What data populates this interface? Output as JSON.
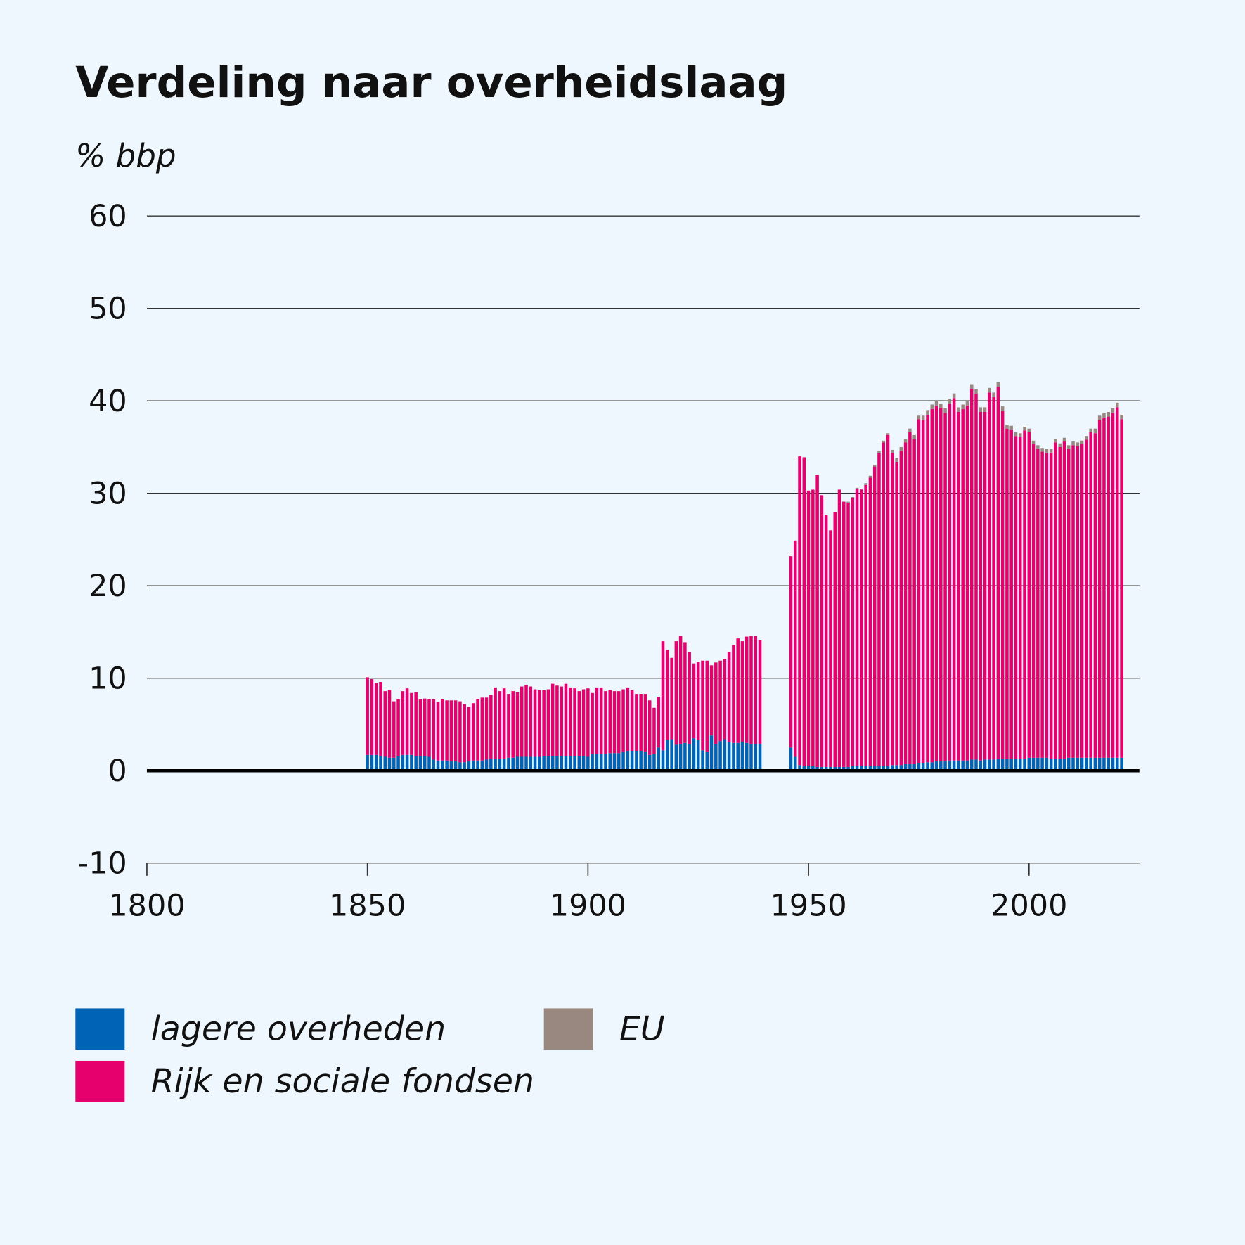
{
  "chart_data": {
    "type": "stacked-bar",
    "title": "Verdeling naar overheidslaag",
    "y_label": "% bbp",
    "x": [
      1850,
      1851,
      1852,
      1853,
      1854,
      1855,
      1856,
      1857,
      1858,
      1859,
      1860,
      1861,
      1862,
      1863,
      1864,
      1865,
      1866,
      1867,
      1868,
      1869,
      1870,
      1871,
      1872,
      1873,
      1874,
      1875,
      1876,
      1877,
      1878,
      1879,
      1880,
      1881,
      1882,
      1883,
      1884,
      1885,
      1886,
      1887,
      1888,
      1889,
      1890,
      1891,
      1892,
      1893,
      1894,
      1895,
      1896,
      1897,
      1898,
      1899,
      1900,
      1901,
      1902,
      1903,
      1904,
      1905,
      1906,
      1907,
      1908,
      1909,
      1910,
      1911,
      1912,
      1913,
      1914,
      1915,
      1916,
      1917,
      1918,
      1919,
      1920,
      1921,
      1922,
      1923,
      1924,
      1925,
      1926,
      1927,
      1928,
      1929,
      1930,
      1931,
      1932,
      1933,
      1934,
      1935,
      1936,
      1937,
      1938,
      1939,
      1946,
      1947,
      1948,
      1949,
      1950,
      1951,
      1952,
      1953,
      1954,
      1955,
      1956,
      1957,
      1958,
      1959,
      1960,
      1961,
      1962,
      1963,
      1964,
      1965,
      1966,
      1967,
      1968,
      1969,
      1970,
      1971,
      1972,
      1973,
      1974,
      1975,
      1976,
      1977,
      1978,
      1979,
      1980,
      1981,
      1982,
      1983,
      1984,
      1985,
      1986,
      1987,
      1988,
      1989,
      1990,
      1991,
      1992,
      1993,
      1994,
      1995,
      1996,
      1997,
      1998,
      1999,
      2000,
      2001,
      2002,
      2003,
      2004,
      2005,
      2006,
      2007,
      2008,
      2009,
      2010,
      2011,
      2012,
      2013,
      2014,
      2015,
      2016,
      2017,
      2018,
      2019,
      2020,
      2021
    ],
    "series": [
      {
        "name": "lagere overheden",
        "color": "#0063b6",
        "values": [
          1.7,
          1.7,
          1.7,
          1.6,
          1.5,
          1.4,
          1.4,
          1.6,
          1.7,
          1.7,
          1.7,
          1.6,
          1.6,
          1.6,
          1.5,
          1.2,
          1.1,
          1.1,
          1.1,
          1.0,
          1.0,
          0.9,
          0.9,
          1.0,
          1.1,
          1.1,
          1.1,
          1.2,
          1.3,
          1.3,
          1.3,
          1.3,
          1.4,
          1.4,
          1.5,
          1.5,
          1.5,
          1.5,
          1.5,
          1.5,
          1.6,
          1.6,
          1.6,
          1.6,
          1.6,
          1.6,
          1.6,
          1.6,
          1.6,
          1.6,
          1.5,
          1.8,
          1.8,
          1.8,
          1.8,
          1.9,
          1.9,
          1.9,
          2.0,
          2.1,
          2.1,
          2.1,
          2.1,
          2.0,
          1.7,
          1.8,
          2.5,
          2.2,
          3.3,
          3.4,
          2.8,
          2.9,
          3.0,
          2.9,
          3.5,
          3.3,
          2.2,
          2.0,
          3.8,
          2.9,
          3.2,
          3.4,
          3.1,
          3.0,
          3.0,
          3.1,
          3.0,
          2.9,
          2.9,
          2.9,
          2.5,
          1.5,
          0.6,
          0.5,
          0.5,
          0.5,
          0.4,
          0.4,
          0.4,
          0.4,
          0.4,
          0.4,
          0.4,
          0.4,
          0.5,
          0.5,
          0.5,
          0.5,
          0.5,
          0.5,
          0.5,
          0.5,
          0.5,
          0.6,
          0.6,
          0.6,
          0.7,
          0.7,
          0.7,
          0.8,
          0.8,
          0.9,
          0.9,
          1.0,
          1.0,
          1.0,
          1.1,
          1.1,
          1.1,
          1.1,
          1.1,
          1.2,
          1.2,
          1.1,
          1.2,
          1.2,
          1.2,
          1.3,
          1.3,
          1.3,
          1.3,
          1.3,
          1.3,
          1.3,
          1.4,
          1.4,
          1.4,
          1.4,
          1.4,
          1.3,
          1.3,
          1.3,
          1.3,
          1.4,
          1.4,
          1.4,
          1.4,
          1.4,
          1.4,
          1.4,
          1.4,
          1.4,
          1.4,
          1.4,
          1.4,
          1.4
        ]
      },
      {
        "name": "Rijk en sociale fondsen",
        "color": "#e5006d",
        "values": [
          8.4,
          8.2,
          7.8,
          8.0,
          7.1,
          7.3,
          6.1,
          6.1,
          6.9,
          7.2,
          6.7,
          6.9,
          6.1,
          6.2,
          6.2,
          6.5,
          6.3,
          6.6,
          6.5,
          6.6,
          6.6,
          6.6,
          6.3,
          5.9,
          6.2,
          6.6,
          6.8,
          6.7,
          6.9,
          7.7,
          7.3,
          7.6,
          6.9,
          7.2,
          7.0,
          7.6,
          7.8,
          7.6,
          7.3,
          7.2,
          7.1,
          7.2,
          7.8,
          7.6,
          7.5,
          7.8,
          7.4,
          7.3,
          7.0,
          7.2,
          7.4,
          6.6,
          7.2,
          7.2,
          6.8,
          6.8,
          6.7,
          6.7,
          6.8,
          6.9,
          6.6,
          6.2,
          6.2,
          6.3,
          5.9,
          5.0,
          5.5,
          11.8,
          9.8,
          8.8,
          11.2,
          11.7,
          10.9,
          9.9,
          8.1,
          8.5,
          9.7,
          9.9,
          7.6,
          8.8,
          8.7,
          8.7,
          9.7,
          10.6,
          11.3,
          10.9,
          11.5,
          11.7,
          11.7,
          11.2,
          20.7,
          23.4,
          33.4,
          33.4,
          29.8,
          29.9,
          31.6,
          29.4,
          27.3,
          25.6,
          27.6,
          30.0,
          28.7,
          28.6,
          29.0,
          30.0,
          29.9,
          30.4,
          31.2,
          32.4,
          33.9,
          35.0,
          35.8,
          33.8,
          32.8,
          34.0,
          34.8,
          35.9,
          35.2,
          37.2,
          37.1,
          37.6,
          38.2,
          38.5,
          38.2,
          37.7,
          38.6,
          39.2,
          37.7,
          38.0,
          38.4,
          40.1,
          39.6,
          37.7,
          37.6,
          39.7,
          39.2,
          40.2,
          37.6,
          35.7,
          35.6,
          34.9,
          34.8,
          35.5,
          35.2,
          33.9,
          33.4,
          33.1,
          33.0,
          33.1,
          34.2,
          33.7,
          34.3,
          33.4,
          33.8,
          33.7,
          33.9,
          34.4,
          35.2,
          35.1,
          36.5,
          36.8,
          36.9,
          37.3,
          37.9,
          36.6
        ]
      },
      {
        "name": "EU",
        "color": "#988880",
        "values": [
          0,
          0,
          0,
          0,
          0,
          0,
          0,
          0,
          0,
          0,
          0,
          0,
          0,
          0,
          0,
          0,
          0,
          0,
          0,
          0,
          0,
          0,
          0,
          0,
          0,
          0,
          0,
          0,
          0,
          0,
          0,
          0,
          0,
          0,
          0,
          0,
          0,
          0,
          0,
          0,
          0,
          0,
          0,
          0,
          0,
          0,
          0,
          0,
          0,
          0,
          0,
          0,
          0,
          0,
          0,
          0,
          0,
          0,
          0,
          0,
          0,
          0,
          0,
          0,
          0,
          0,
          0,
          0,
          0,
          0,
          0,
          0,
          0,
          0,
          0,
          0,
          0,
          0,
          0,
          0,
          0,
          0,
          0,
          0,
          0,
          0,
          0,
          0,
          0,
          0,
          0,
          0,
          0,
          0,
          0,
          0,
          0,
          0,
          0,
          0,
          0,
          0,
          0,
          0.1,
          0.1,
          0.1,
          0.1,
          0.2,
          0.2,
          0.2,
          0.2,
          0.2,
          0.2,
          0.3,
          0.4,
          0.4,
          0.4,
          0.4,
          0.4,
          0.4,
          0.5,
          0.5,
          0.5,
          0.5,
          0.5,
          0.5,
          0.5,
          0.5,
          0.5,
          0.5,
          0.5,
          0.5,
          0.5,
          0.5,
          0.5,
          0.5,
          0.5,
          0.5,
          0.5,
          0.4,
          0.4,
          0.4,
          0.4,
          0.4,
          0.4,
          0.4,
          0.4,
          0.4,
          0.4,
          0.4,
          0.4,
          0.4,
          0.4,
          0.4,
          0.4,
          0.4,
          0.4,
          0.4,
          0.4,
          0.5,
          0.5,
          0.5,
          0.5,
          0.5,
          0.5,
          0.5
        ]
      }
    ],
    "xlim": [
      1800,
      2025
    ],
    "xticks": [
      1800,
      1850,
      1900,
      1950,
      2000
    ],
    "ylim": [
      -10,
      60
    ],
    "yticks": [
      -10,
      0,
      10,
      20,
      30,
      40,
      50,
      60
    ],
    "grid": true
  }
}
